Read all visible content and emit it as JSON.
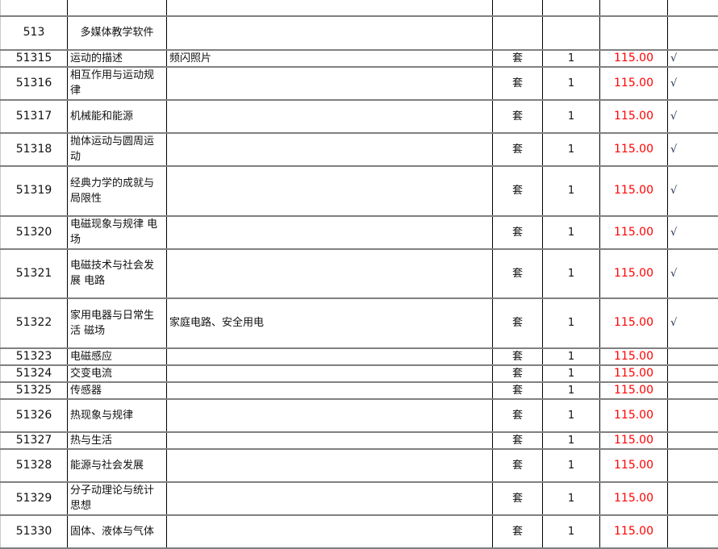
{
  "category": {
    "code": "513",
    "name": "多媒体教学软件"
  },
  "rows": [
    {
      "code": "51315",
      "name": "运动的描述",
      "note": "频闪照片",
      "unit": "套",
      "qty": "1",
      "price": "115.00",
      "check": "√"
    },
    {
      "code": "51316",
      "name": "相互作用与运动规律",
      "note": "",
      "unit": "套",
      "qty": "1",
      "price": "115.00",
      "check": "√"
    },
    {
      "code": "51317",
      "name": "机械能和能源",
      "note": "",
      "unit": "套",
      "qty": "1",
      "price": "115.00",
      "check": "√"
    },
    {
      "code": "51318",
      "name": "抛体运动与圆周运动",
      "note": "",
      "unit": "套",
      "qty": "1",
      "price": "115.00",
      "check": "√"
    },
    {
      "code": "51319",
      "name": "经典力学的成就与局限性",
      "note": "",
      "unit": "套",
      "qty": "1",
      "price": "115.00",
      "check": "√"
    },
    {
      "code": "51320",
      "name": "电磁现象与规律 电场",
      "note": "",
      "unit": "套",
      "qty": "1",
      "price": "115.00",
      "check": "√"
    },
    {
      "code": "51321",
      "name": "电磁技术与社会发展 电路",
      "note": "",
      "unit": "套",
      "qty": "1",
      "price": "115.00",
      "check": "√"
    },
    {
      "code": "51322",
      "name": "家用电器与日常生活 磁场",
      "note": "家庭电路、安全用电",
      "unit": "套",
      "qty": "1",
      "price": "115.00",
      "check": "√"
    },
    {
      "code": "51323",
      "name": "电磁感应",
      "note": "",
      "unit": "套",
      "qty": "1",
      "price": "115.00",
      "check": ""
    },
    {
      "code": "51324",
      "name": "交变电流",
      "note": "",
      "unit": "套",
      "qty": "1",
      "price": "115.00",
      "check": ""
    },
    {
      "code": "51325",
      "name": "传感器",
      "note": "",
      "unit": "套",
      "qty": "1",
      "price": "115.00",
      "check": ""
    },
    {
      "code": "51326",
      "name": "热现象与规律",
      "note": "",
      "unit": "套",
      "qty": "1",
      "price": "115.00",
      "check": ""
    },
    {
      "code": "51327",
      "name": "热与生活",
      "note": "",
      "unit": "套",
      "qty": "1",
      "price": "115.00",
      "check": ""
    },
    {
      "code": "51328",
      "name": "能源与社会发展",
      "note": "",
      "unit": "套",
      "qty": "1",
      "price": "115.00",
      "check": ""
    },
    {
      "code": "51329",
      "name": "分子动理论与统计思想",
      "note": "",
      "unit": "套",
      "qty": "1",
      "price": "115.00",
      "check": ""
    },
    {
      "code": "51330",
      "name": "固体、液体与气体",
      "note": "",
      "unit": "套",
      "qty": "1",
      "price": "115.00",
      "check": ""
    }
  ]
}
